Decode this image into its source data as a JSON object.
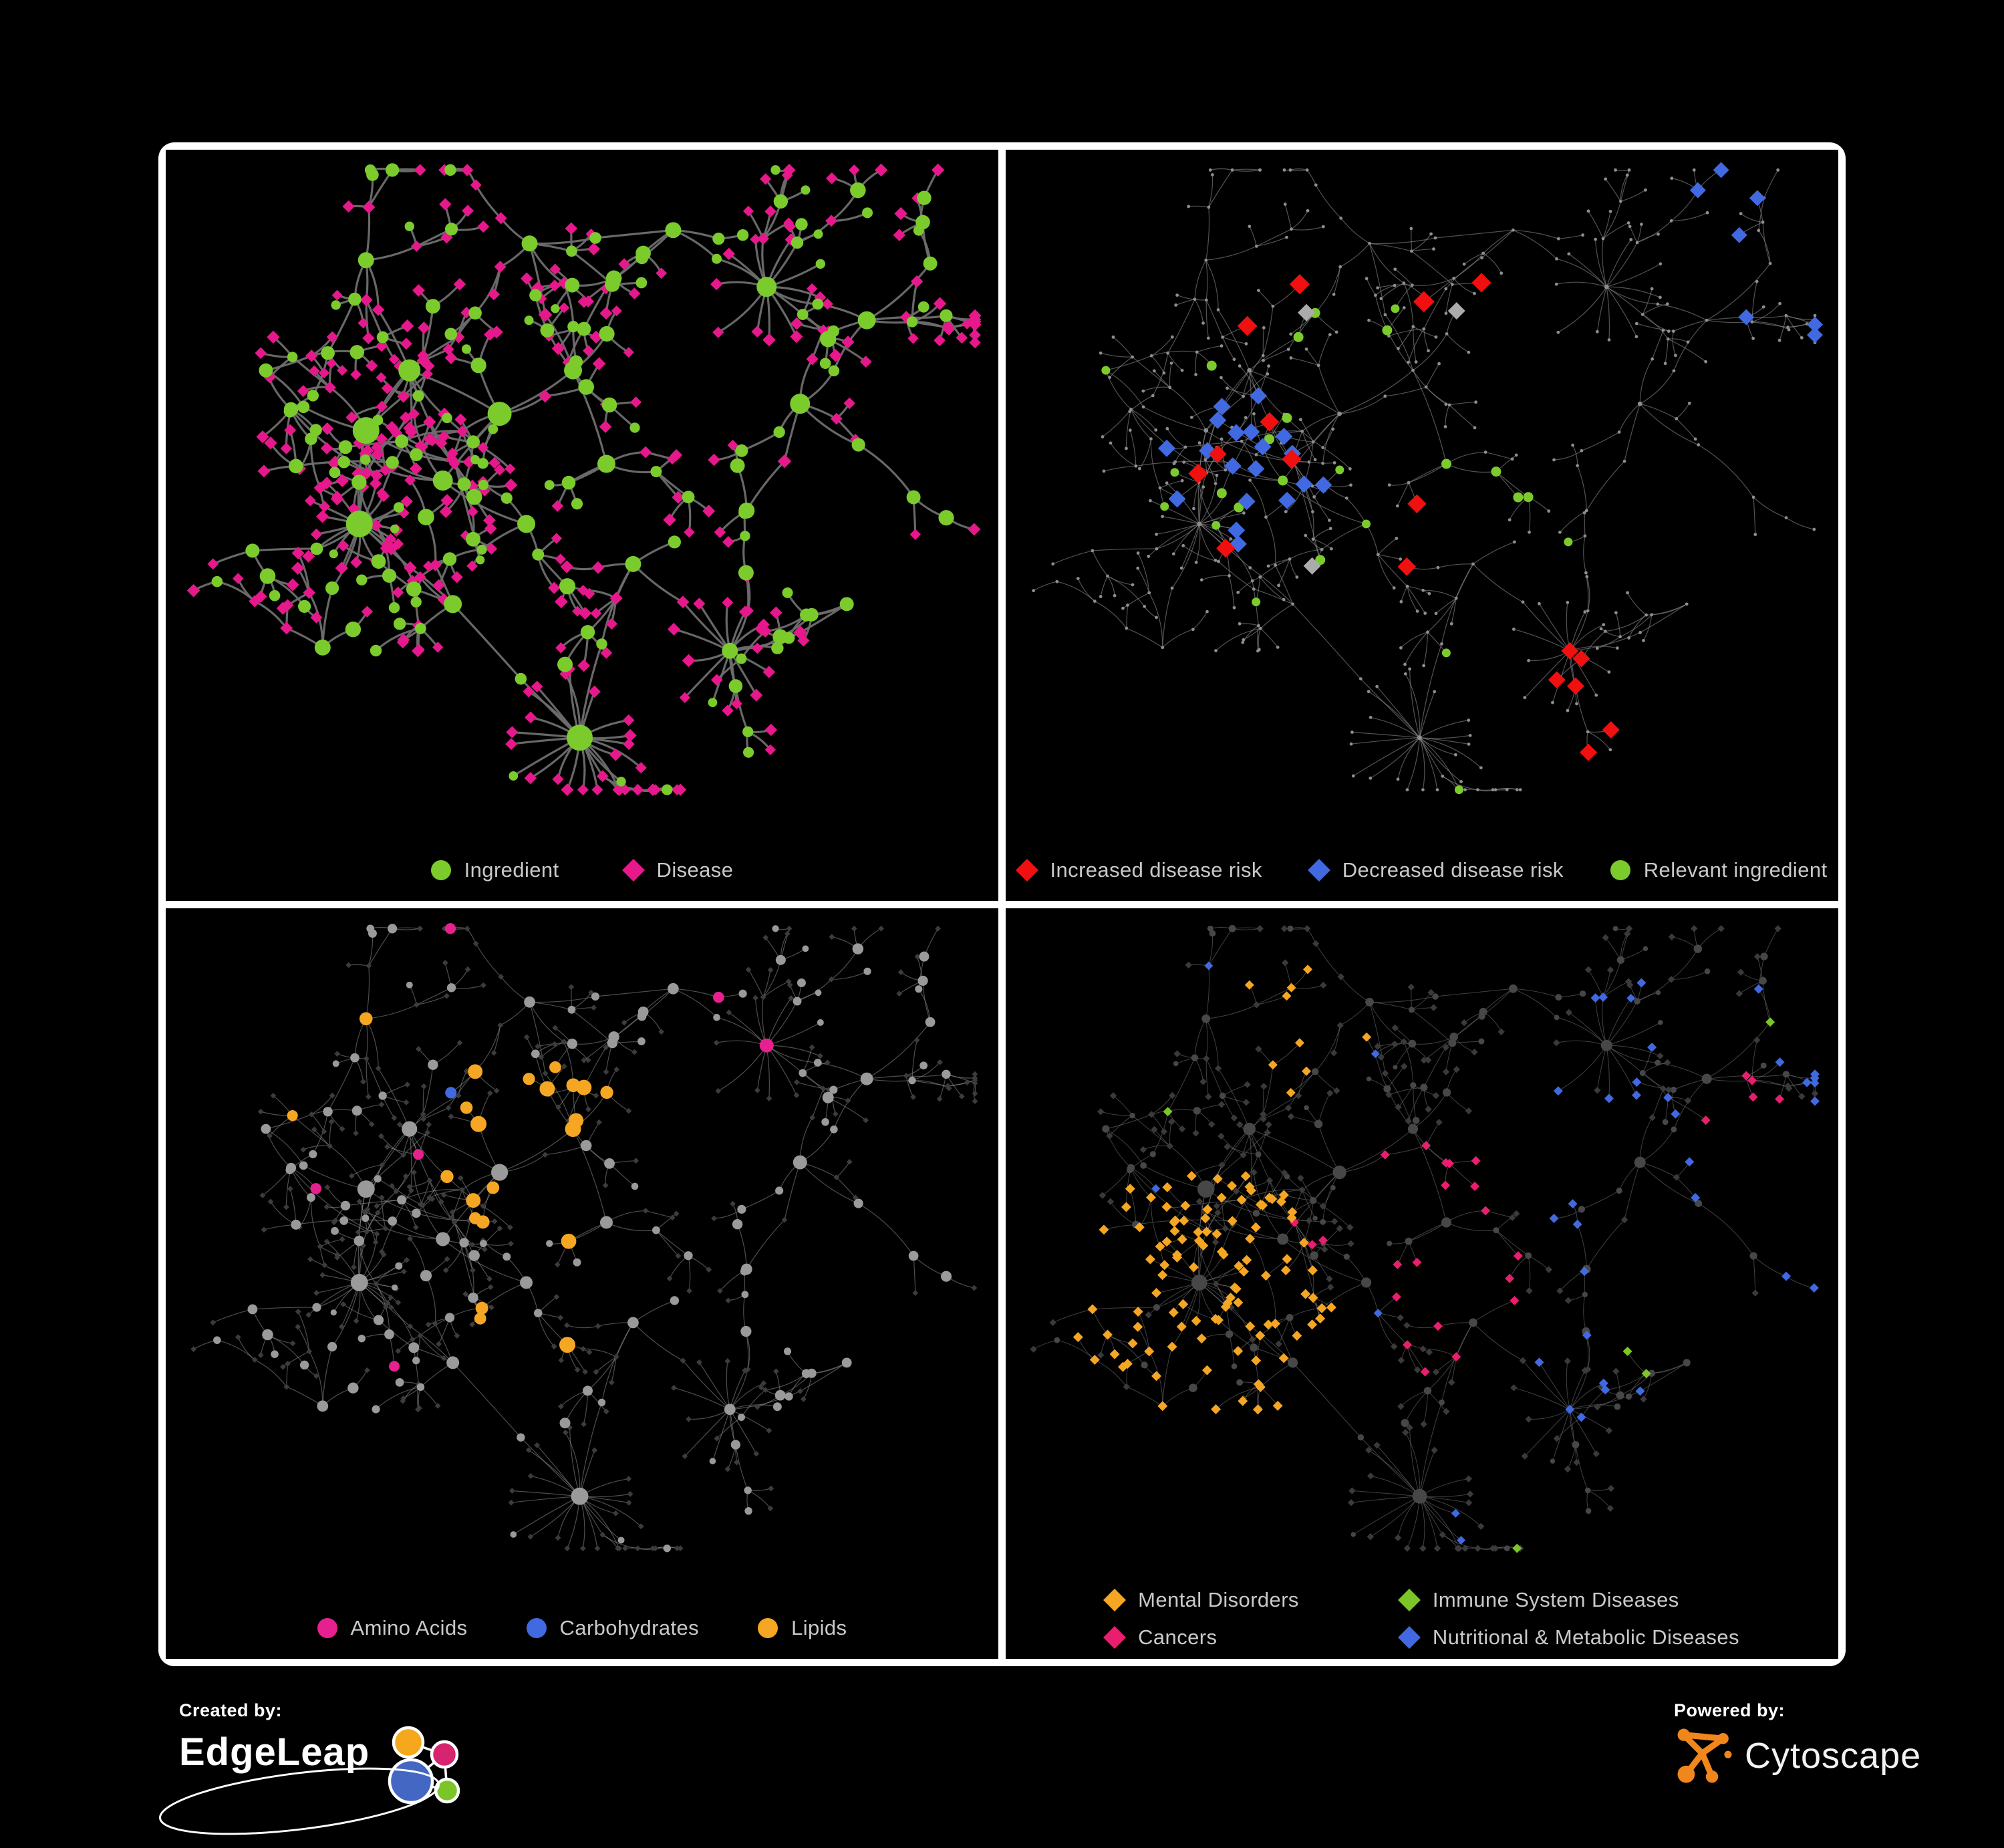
{
  "page": {
    "background": "#000000",
    "frame_color": "#ffffff"
  },
  "panels": [
    {
      "id": "ingredient-disease",
      "legend": [
        {
          "label": "Ingredient",
          "shape": "circle",
          "color": "#7CCB2D"
        },
        {
          "label": "Disease",
          "shape": "diamond",
          "color": "#E6188C"
        }
      ],
      "style": {
        "edge_color": "#6E6E6E",
        "edge_opacity": 0.95,
        "edge_width": 3.2,
        "circle_color": "#7CCB2D",
        "diamond_color": "#E6188C"
      }
    },
    {
      "id": "disease-risk",
      "legend": [
        {
          "label": "Increased disease risk",
          "shape": "diamond",
          "color": "#F01010"
        },
        {
          "label": "Decreased disease risk",
          "shape": "diamond",
          "color": "#4169E1"
        },
        {
          "label": "Relevant ingredient",
          "shape": "circle",
          "color": "#7CCB2D"
        }
      ],
      "style": {
        "edge_color": "#8A8A8A",
        "edge_opacity": 0.6,
        "edge_width": 1.2,
        "base_color": "#8E8E8E",
        "red": "#F01010",
        "blue": "#4169E1",
        "gray": "#ABABAB",
        "green": "#7CCB2D"
      }
    },
    {
      "id": "macronutrients",
      "legend": [
        {
          "label": "Amino Acids",
          "shape": "circle",
          "color": "#E6218F"
        },
        {
          "label": "Carbohydrates",
          "shape": "circle",
          "color": "#4169E1"
        },
        {
          "label": "Lipids",
          "shape": "circle",
          "color": "#F5A623"
        }
      ],
      "style": {
        "edge_color": "#9B9B9B",
        "edge_opacity": 0.5,
        "edge_width": 1.2,
        "base_circle": "#9A9A9A",
        "base_diamond": "#3C3C3C",
        "pink": "#E6218F",
        "blue": "#4169E1",
        "orange": "#F5A623"
      }
    },
    {
      "id": "disease-categories",
      "legend": [
        {
          "label": "Mental Disorders",
          "shape": "diamond",
          "color": "#F5A623"
        },
        {
          "label": "Immune System Diseases",
          "shape": "diamond",
          "color": "#7CC528"
        },
        {
          "label": "Cancers",
          "shape": "diamond",
          "color": "#E91E6F"
        },
        {
          "label": "Nutritional & Metabolic Diseases",
          "shape": "diamond",
          "color": "#4169E1"
        }
      ],
      "style": {
        "edge_color": "#9B9B9B",
        "edge_opacity": 0.42,
        "edge_width": 1.0,
        "base_circle": "#474747",
        "base_diamond": "#3A3A3A",
        "orange": "#F5A623",
        "green": "#7CC528",
        "pink": "#E91E6F",
        "blue": "#4169E1"
      }
    }
  ],
  "footer": {
    "created_by_label": "Created by:",
    "created_by_name": "EdgeLeap",
    "powered_by_label": "Powered by:",
    "powered_by_name": "Cytoscape",
    "edgeleap_colors": {
      "orange": "#F5A81C",
      "magenta": "#D6246E",
      "blue": "#4467C4",
      "green": "#7CC528",
      "outline": "#FFFFFF"
    },
    "cytoscape_color": "#F0861C"
  }
}
